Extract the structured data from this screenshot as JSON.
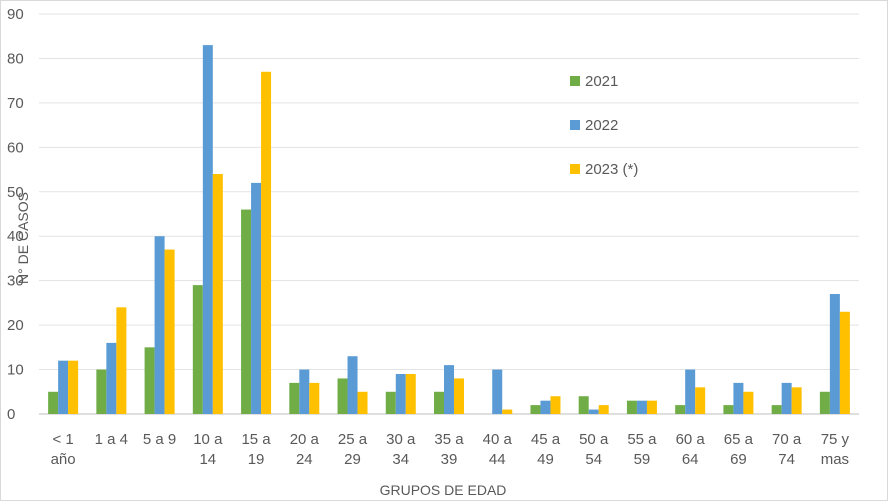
{
  "chart_data": {
    "type": "bar",
    "xlabel": "GRUPOS DE EDAD",
    "ylabel": "N° DE CASOS",
    "ylim": [
      0,
      90
    ],
    "ytick_step": 10,
    "grid": true,
    "legend_position": "right",
    "categories": [
      [
        "< 1",
        "año"
      ],
      [
        "1 a 4",
        ""
      ],
      [
        "5 a 9",
        ""
      ],
      [
        "10 a",
        "14"
      ],
      [
        "15 a",
        "19"
      ],
      [
        "20 a",
        "24"
      ],
      [
        "25 a",
        "29"
      ],
      [
        "30 a",
        "34"
      ],
      [
        "35 a",
        "39"
      ],
      [
        "40 a",
        "44"
      ],
      [
        "45 a",
        "49"
      ],
      [
        "50 a",
        "54"
      ],
      [
        "55 a",
        "59"
      ],
      [
        "60 a",
        "64"
      ],
      [
        "65 a",
        "69"
      ],
      [
        "70 a",
        "74"
      ],
      [
        "75  y",
        "mas"
      ]
    ],
    "series": [
      {
        "name": "2021",
        "color": "#70ad47",
        "values": [
          5,
          10,
          15,
          29,
          46,
          7,
          8,
          5,
          5,
          0,
          2,
          4,
          3,
          2,
          2,
          2,
          5
        ]
      },
      {
        "name": "2022",
        "color": "#5b9bd5",
        "values": [
          12,
          16,
          40,
          83,
          52,
          10,
          13,
          9,
          11,
          10,
          3,
          1,
          3,
          10,
          7,
          7,
          27
        ]
      },
      {
        "name": "2023 (*)",
        "color": "#ffc000",
        "values": [
          12,
          24,
          37,
          54,
          77,
          7,
          5,
          9,
          8,
          1,
          4,
          2,
          3,
          6,
          5,
          6,
          23
        ]
      }
    ]
  }
}
